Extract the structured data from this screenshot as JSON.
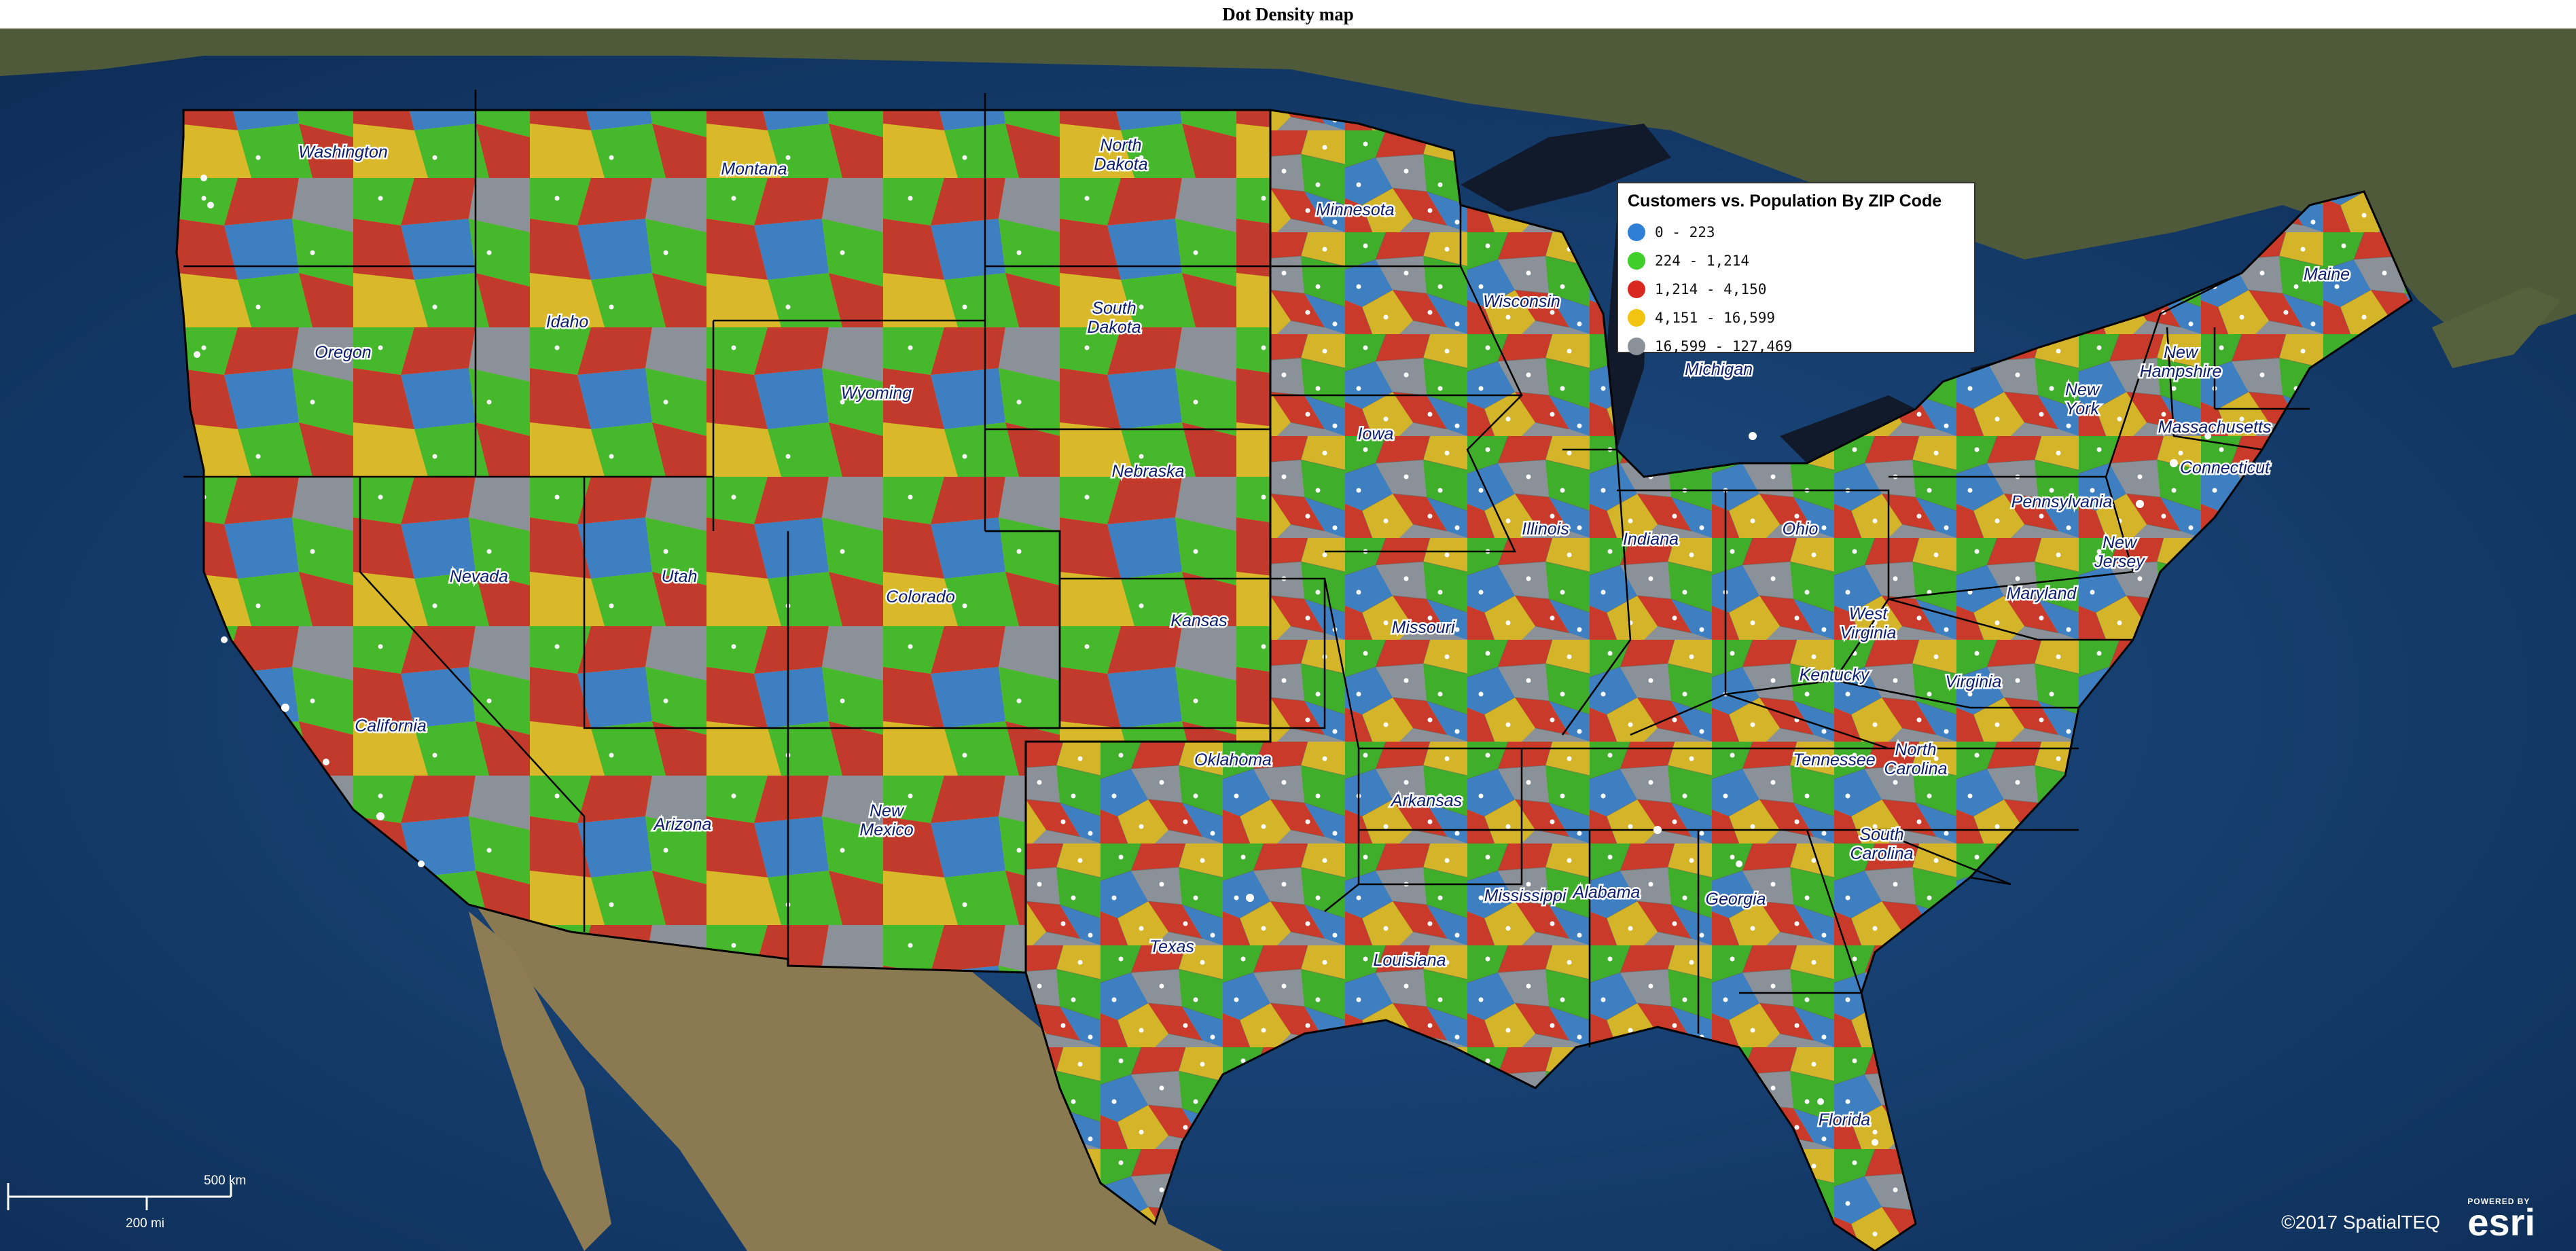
{
  "title": "Dot Density map",
  "legend": {
    "title": "Customers vs. Population By ZIP Code",
    "items": [
      {
        "label": "0 - 223",
        "color": "#2f7fd6"
      },
      {
        "label": "224 - 1,214",
        "color": "#3fcf2a"
      },
      {
        "label": "1,214 - 4,150",
        "color": "#d9281f"
      },
      {
        "label": "4,151 - 16,599",
        "color": "#f2c40f"
      },
      {
        "label": "16,599 - 127,469",
        "color": "#8a9198"
      }
    ]
  },
  "states": [
    "Washington",
    "Montana",
    "North Dakota",
    "Minnesota",
    "Oregon",
    "Idaho",
    "South Dakota",
    "Wisconsin",
    "Wyoming",
    "Maine",
    "New York",
    "New Hampshire",
    "Massachusetts",
    "Connecticut",
    "Iowa",
    "Nebraska",
    "Michigan",
    "Nevada",
    "Utah",
    "Colorado",
    "Illinois",
    "Indiana",
    "Ohio",
    "Pennsylvania",
    "New Jersey",
    "Kansas",
    "Missouri",
    "West Virginia",
    "Maryland",
    "California",
    "Kentucky",
    "Virginia",
    "Tennessee",
    "Oklahoma",
    "North Carolina",
    "Arizona",
    "Arkansas",
    "New Mexico",
    "South Carolina",
    "Mississippi",
    "Alabama",
    "Georgia",
    "Texas",
    "Louisiana",
    "Florida"
  ],
  "scale": {
    "km": "500 km",
    "mi": "200 mi"
  },
  "credit": "©2017 SpatialTEQ",
  "esri": {
    "powered": "POWERED BY",
    "name": "esri"
  }
}
